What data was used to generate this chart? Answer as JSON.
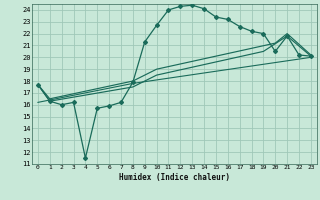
{
  "title": "",
  "xlabel": "Humidex (Indice chaleur)",
  "bg_color": "#c8e8d8",
  "grid_color": "#a0c8b8",
  "line_color": "#1a6b5a",
  "xlim": [
    -0.5,
    23.5
  ],
  "ylim": [
    11,
    24.5
  ],
  "xticks": [
    0,
    1,
    2,
    3,
    4,
    5,
    6,
    7,
    8,
    9,
    10,
    11,
    12,
    13,
    14,
    15,
    16,
    17,
    18,
    19,
    20,
    21,
    22,
    23
  ],
  "yticks": [
    11,
    12,
    13,
    14,
    15,
    16,
    17,
    18,
    19,
    20,
    21,
    22,
    23,
    24
  ],
  "line1_x": [
    0,
    1,
    2,
    3,
    4,
    5,
    6,
    7,
    8,
    9,
    10,
    11,
    12,
    13,
    14,
    15,
    16,
    17,
    18,
    19,
    20,
    21,
    22,
    23
  ],
  "line1_y": [
    17.7,
    16.3,
    16.0,
    16.2,
    11.5,
    15.7,
    15.9,
    16.2,
    17.9,
    21.3,
    22.7,
    24.0,
    24.3,
    24.4,
    24.1,
    23.4,
    23.2,
    22.6,
    22.2,
    22.0,
    20.5,
    21.8,
    20.2,
    20.1
  ],
  "line2_x": [
    0,
    1,
    8,
    10,
    20,
    21,
    23
  ],
  "line2_y": [
    17.7,
    16.5,
    18.0,
    19.0,
    21.2,
    22.0,
    20.2
  ],
  "line3_x": [
    0,
    1,
    8,
    10,
    19,
    21,
    23
  ],
  "line3_y": [
    17.7,
    16.3,
    17.5,
    18.5,
    20.5,
    21.8,
    20.1
  ],
  "line4_x": [
    0,
    8,
    23
  ],
  "line4_y": [
    16.2,
    17.8,
    20.0
  ]
}
